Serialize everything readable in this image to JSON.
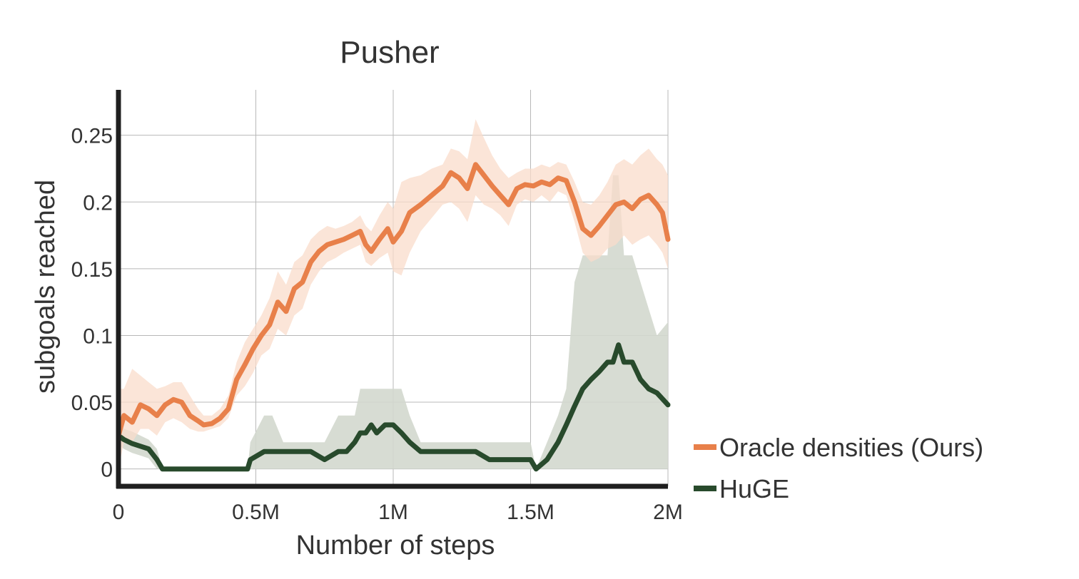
{
  "chart_data": {
    "type": "line",
    "title": "Pusher",
    "xlabel": "Number of steps",
    "ylabel": "subgoals reached",
    "xlim": [
      0,
      2000000
    ],
    "ylim": [
      -0.013,
      0.284
    ],
    "grid": true,
    "legend_position": "bottom-right-outside",
    "xticks": [
      0,
      500000,
      1000000,
      1500000,
      2000000
    ],
    "xtick_labels": [
      "0",
      "0.5M",
      "1M",
      "1.5M",
      "2M"
    ],
    "yticks": [
      0,
      0.05,
      0.1,
      0.15,
      0.2,
      0.25
    ],
    "ytick_labels": [
      "0",
      "0.05",
      "0.1",
      "0.15",
      "0.2",
      "0.25"
    ],
    "series": [
      {
        "name": "Oracle densities (Ours)",
        "color": "#E8804A",
        "band_color": "#F9DCCB",
        "x": [
          0,
          20000,
          50000,
          80000,
          110000,
          140000,
          170000,
          200000,
          230000,
          260000,
          290000,
          310000,
          340000,
          370000,
          400000,
          430000,
          460000,
          490000,
          520000,
          550000,
          580000,
          610000,
          640000,
          670000,
          700000,
          730000,
          760000,
          790000,
          820000,
          850000,
          880000,
          900000,
          920000,
          950000,
          980000,
          1000000,
          1030000,
          1060000,
          1100000,
          1140000,
          1180000,
          1210000,
          1240000,
          1270000,
          1300000,
          1330000,
          1360000,
          1390000,
          1420000,
          1450000,
          1480000,
          1510000,
          1540000,
          1570000,
          1600000,
          1630000,
          1660000,
          1690000,
          1720000,
          1750000,
          1780000,
          1810000,
          1840000,
          1870000,
          1900000,
          1930000,
          1960000,
          1980000,
          2000000
        ],
        "values": [
          0.025,
          0.04,
          0.035,
          0.048,
          0.045,
          0.04,
          0.048,
          0.052,
          0.05,
          0.04,
          0.036,
          0.033,
          0.034,
          0.038,
          0.045,
          0.067,
          0.078,
          0.09,
          0.1,
          0.108,
          0.125,
          0.118,
          0.135,
          0.14,
          0.155,
          0.163,
          0.168,
          0.17,
          0.172,
          0.175,
          0.178,
          0.168,
          0.163,
          0.172,
          0.18,
          0.17,
          0.178,
          0.192,
          0.198,
          0.205,
          0.212,
          0.222,
          0.218,
          0.21,
          0.228,
          0.22,
          0.212,
          0.205,
          0.198,
          0.21,
          0.213,
          0.212,
          0.215,
          0.213,
          0.218,
          0.216,
          0.2,
          0.18,
          0.175,
          0.182,
          0.19,
          0.198,
          0.2,
          0.195,
          0.202,
          0.205,
          0.198,
          0.192,
          0.172
        ],
        "lower": [
          0.0,
          0.02,
          0.02,
          0.03,
          0.03,
          0.025,
          0.035,
          0.038,
          0.035,
          0.03,
          0.028,
          0.028,
          0.03,
          0.032,
          0.038,
          0.055,
          0.062,
          0.072,
          0.085,
          0.09,
          0.105,
          0.1,
          0.115,
          0.12,
          0.138,
          0.148,
          0.155,
          0.158,
          0.162,
          0.165,
          0.168,
          0.155,
          0.152,
          0.158,
          0.162,
          0.148,
          0.145,
          0.162,
          0.178,
          0.188,
          0.198,
          0.2,
          0.195,
          0.185,
          0.205,
          0.198,
          0.195,
          0.19,
          0.182,
          0.198,
          0.202,
          0.2,
          0.205,
          0.2,
          0.208,
          0.205,
          0.185,
          0.162,
          0.155,
          0.158,
          0.165,
          0.168,
          0.175,
          0.168,
          0.172,
          0.175,
          0.168,
          0.162,
          0.15
        ],
        "upper": [
          0.06,
          0.06,
          0.075,
          0.07,
          0.065,
          0.06,
          0.062,
          0.065,
          0.065,
          0.055,
          0.045,
          0.04,
          0.04,
          0.045,
          0.055,
          0.08,
          0.095,
          0.105,
          0.115,
          0.128,
          0.148,
          0.138,
          0.155,
          0.16,
          0.172,
          0.178,
          0.182,
          0.18,
          0.182,
          0.185,
          0.19,
          0.182,
          0.178,
          0.19,
          0.2,
          0.195,
          0.215,
          0.218,
          0.22,
          0.225,
          0.228,
          0.24,
          0.238,
          0.232,
          0.262,
          0.248,
          0.235,
          0.225,
          0.218,
          0.222,
          0.225,
          0.225,
          0.228,
          0.226,
          0.23,
          0.228,
          0.215,
          0.2,
          0.198,
          0.205,
          0.215,
          0.228,
          0.232,
          0.228,
          0.235,
          0.24,
          0.232,
          0.228,
          0.22
        ]
      },
      {
        "name": "HuGE",
        "color": "#284A2C",
        "band_color": "#D3D8CE",
        "x": [
          0,
          20000,
          50000,
          80000,
          110000,
          140000,
          160000,
          200000,
          300000,
          400000,
          470000,
          480000,
          530000,
          560000,
          600000,
          650000,
          700000,
          750000,
          800000,
          830000,
          860000,
          880000,
          900000,
          920000,
          940000,
          970000,
          1000000,
          1030000,
          1060000,
          1100000,
          1150000,
          1200000,
          1250000,
          1300000,
          1350000,
          1400000,
          1450000,
          1500000,
          1520000,
          1560000,
          1600000,
          1630000,
          1660000,
          1690000,
          1720000,
          1750000,
          1780000,
          1800000,
          1820000,
          1840000,
          1870000,
          1900000,
          1930000,
          1960000,
          2000000
        ],
        "values": [
          0.025,
          0.022,
          0.019,
          0.017,
          0.015,
          0.007,
          0.0,
          0.0,
          0.0,
          0.0,
          0.0,
          0.007,
          0.013,
          0.013,
          0.013,
          0.013,
          0.013,
          0.007,
          0.013,
          0.013,
          0.02,
          0.027,
          0.027,
          0.033,
          0.027,
          0.033,
          0.033,
          0.027,
          0.02,
          0.013,
          0.013,
          0.013,
          0.013,
          0.013,
          0.007,
          0.007,
          0.007,
          0.007,
          0.0,
          0.007,
          0.02,
          0.033,
          0.047,
          0.06,
          0.067,
          0.073,
          0.08,
          0.08,
          0.093,
          0.08,
          0.08,
          0.067,
          0.06,
          0.057,
          0.048
        ],
        "lower": [
          0.018,
          0.015,
          0.012,
          0.01,
          0.008,
          0.0,
          0.0,
          0.0,
          0.0,
          0.0,
          0.0,
          0.0,
          0.0,
          0.0,
          0.0,
          0.0,
          0.0,
          0.0,
          0.0,
          0.0,
          0.0,
          0.0,
          0.0,
          0.0,
          0.0,
          0.0,
          0.0,
          0.0,
          0.0,
          0.0,
          0.0,
          0.0,
          0.0,
          0.0,
          0.0,
          0.0,
          0.0,
          0.0,
          0.0,
          0.0,
          0.0,
          0.0,
          0.0,
          0.0,
          0.0,
          0.0,
          0.0,
          0.0,
          0.0,
          0.0,
          0.0,
          0.0,
          0.0,
          0.0,
          0.0
        ],
        "upper": [
          0.035,
          0.03,
          0.028,
          0.025,
          0.022,
          0.015,
          0.0,
          0.0,
          0.0,
          0.0,
          0.0,
          0.02,
          0.04,
          0.04,
          0.02,
          0.02,
          0.02,
          0.02,
          0.04,
          0.04,
          0.04,
          0.06,
          0.06,
          0.06,
          0.06,
          0.06,
          0.06,
          0.06,
          0.04,
          0.02,
          0.02,
          0.02,
          0.02,
          0.02,
          0.02,
          0.02,
          0.02,
          0.02,
          0.0,
          0.02,
          0.04,
          0.06,
          0.14,
          0.16,
          0.16,
          0.16,
          0.16,
          0.22,
          0.22,
          0.16,
          0.16,
          0.14,
          0.12,
          0.1,
          0.11
        ]
      }
    ]
  }
}
